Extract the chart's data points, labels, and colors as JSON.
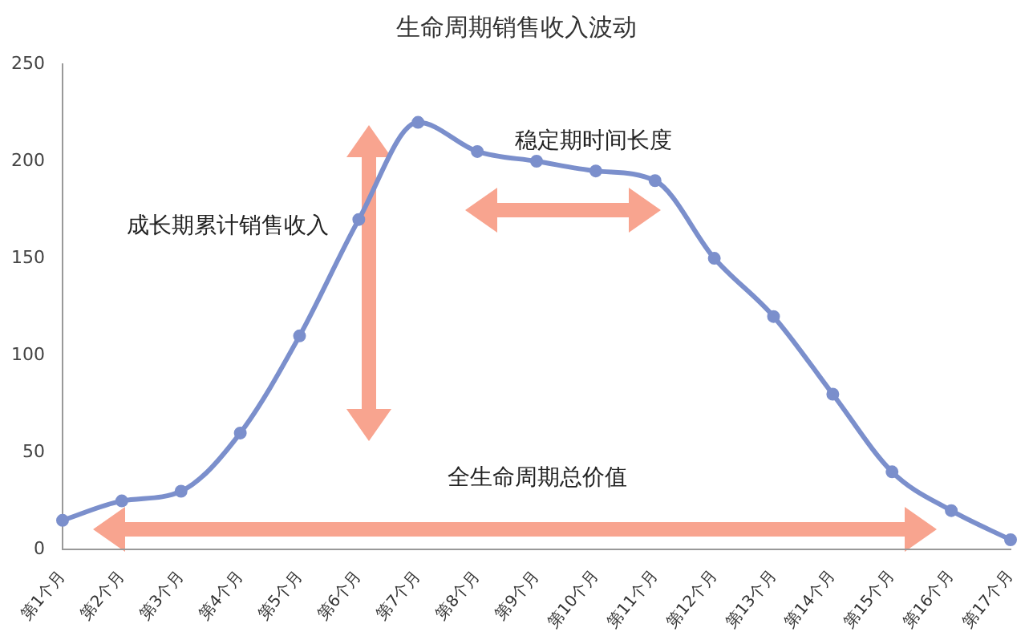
{
  "chart_data": {
    "type": "line",
    "title": "生命周期销售收入波动",
    "categories": [
      "第1个月",
      "第2个月",
      "第3个月",
      "第4个月",
      "第5个月",
      "第6个月",
      "第7个月",
      "第8个月",
      "第9个月",
      "第10个月",
      "第11个月",
      "第12个月",
      "第13个月",
      "第14个月",
      "第15个月",
      "第16个月",
      "第17个月"
    ],
    "series": [
      {
        "color": "#7b8fcc",
        "values": [
          15,
          25,
          30,
          60,
          110,
          170,
          220,
          205,
          200,
          195,
          190,
          150,
          120,
          80,
          40,
          20,
          5
        ]
      }
    ],
    "ylim": [
      0,
      250
    ],
    "yticks": [
      0,
      50,
      100,
      150,
      200,
      250
    ],
    "grid": false,
    "legend": false,
    "marker": "circle",
    "annotations": [
      "成长期累计销售收入",
      "稳定期时间长度",
      "全生命周期总价值"
    ]
  }
}
